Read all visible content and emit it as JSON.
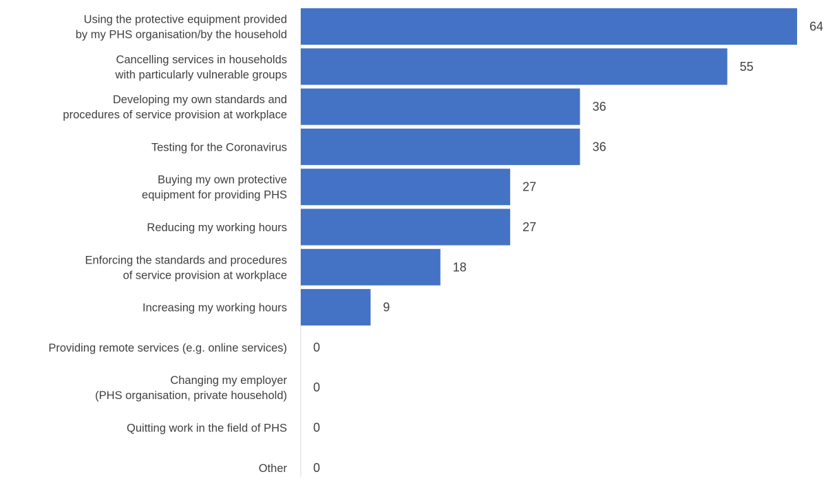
{
  "chart_data": {
    "type": "bar",
    "orientation": "horizontal",
    "categories": [
      [
        "Using the protective equipment provided",
        "by my PHS organisation/by the household"
      ],
      [
        "Cancelling services in households",
        "with particularly vulnerable groups"
      ],
      [
        "Developing my own standards and",
        "procedures of service provision at workplace"
      ],
      [
        "Testing for the Coronavirus"
      ],
      [
        "Buying my own protective",
        "equipment for providing PHS"
      ],
      [
        "Reducing my working hours"
      ],
      [
        "Enforcing the standards and procedures",
        "of service provision at workplace"
      ],
      [
        "Increasing my working hours"
      ],
      [
        "Providing remote services (e.g. online services)"
      ],
      [
        "Changing my employer",
        "(PHS organisation, private household)"
      ],
      [
        "Quitting work in the field of PHS"
      ],
      [
        "Other"
      ]
    ],
    "values": [
      64,
      55,
      36,
      36,
      27,
      27,
      18,
      9,
      0,
      0,
      0,
      0
    ],
    "value_labels": [
      "64",
      "55",
      "36",
      "36",
      "27",
      "27",
      "18",
      "9",
      "0",
      "0",
      "0",
      "0"
    ],
    "title": "",
    "xlabel": "",
    "ylabel": "",
    "xlim": [
      0,
      64
    ],
    "grid": false,
    "legend": "none",
    "bar_color": "#4472C4",
    "axis_color": "#D9D9D9",
    "text_color": "#404040"
  }
}
